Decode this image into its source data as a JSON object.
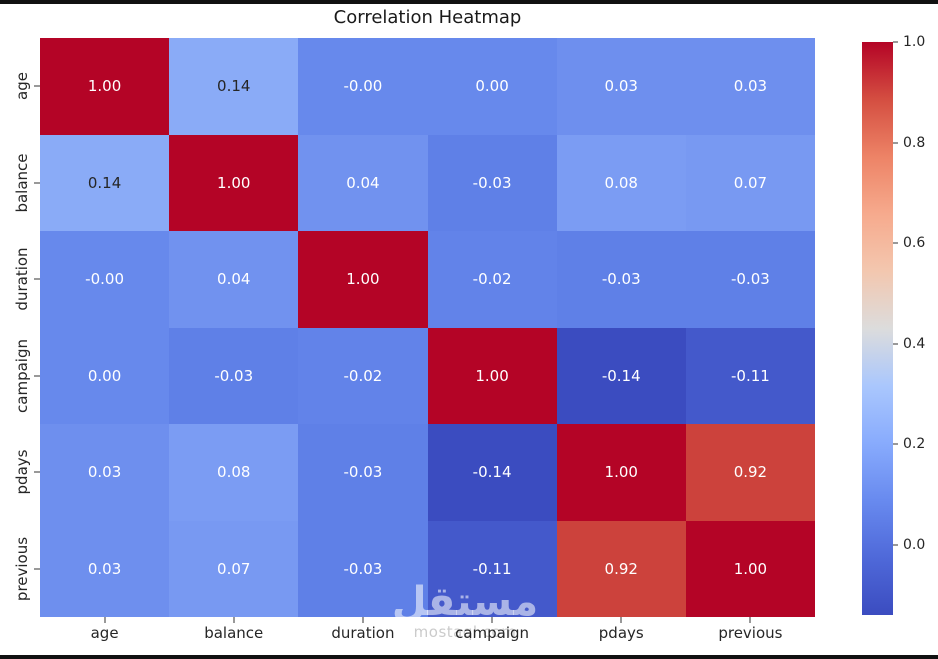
{
  "title": "Correlation Heatmap",
  "watermark": {
    "logo": "مستقل",
    "domain": "mostaql.com"
  },
  "colors": {
    "background": "#ffffff",
    "border_bars": "#111111",
    "title_text": "#1a1a1a",
    "tick_text": "#262626",
    "tick_mark": "#333333",
    "annot_light": "#ffffff",
    "annot_dark": "#262626",
    "watermark_logo": "rgba(255,255,255,0.55)",
    "watermark_domain": "rgba(190,190,190,0.8)"
  },
  "chart_data": {
    "type": "heatmap",
    "title": "Correlation Heatmap",
    "colormap": "coolwarm",
    "vmin": -0.14,
    "vmax": 1.0,
    "grid": false,
    "legend_position": "right-colorbar",
    "categories": [
      "age",
      "balance",
      "duration",
      "campaign",
      "pdays",
      "previous"
    ],
    "matrix": [
      [
        1.0,
        0.14,
        -0.0,
        0.0,
        0.03,
        0.03
      ],
      [
        0.14,
        1.0,
        0.04,
        -0.03,
        0.08,
        0.07
      ],
      [
        -0.0,
        0.04,
        1.0,
        -0.02,
        -0.03,
        -0.03
      ],
      [
        0.0,
        -0.03,
        -0.02,
        1.0,
        -0.14,
        -0.11
      ],
      [
        0.03,
        0.08,
        -0.03,
        -0.14,
        1.0,
        0.92
      ],
      [
        0.03,
        0.07,
        -0.03,
        -0.11,
        0.92,
        1.0
      ]
    ],
    "labels": [
      [
        "1.00",
        "0.14",
        "-0.00",
        "0.00",
        "0.03",
        "0.03"
      ],
      [
        "0.14",
        "1.00",
        "0.04",
        "-0.03",
        "0.08",
        "0.07"
      ],
      [
        "-0.00",
        "0.04",
        "1.00",
        "-0.02",
        "-0.03",
        "-0.03"
      ],
      [
        "0.00",
        "-0.03",
        "-0.02",
        "1.00",
        "-0.14",
        "-0.11"
      ],
      [
        "0.03",
        "0.08",
        "-0.03",
        "-0.14",
        "1.00",
        "0.92"
      ],
      [
        "0.03",
        "0.07",
        "-0.03",
        "-0.11",
        "0.92",
        "1.00"
      ]
    ],
    "cell_colors": {
      "1.00": "#b40426",
      "0.92": "#cc423c",
      "0.14": "#8aabf7",
      "0.08": "#7b9cf3",
      "0.07": "#7899f2",
      "0.04": "#7192ef",
      "0.03": "#6e8fee",
      "0.00": "#6789ec",
      "-0.00": "#6789ec",
      "-0.02": "#6283e9",
      "-0.03": "#5f80e7",
      "-0.11": "#4459cb",
      "-0.14": "#3b4cc0"
    },
    "dark_text_labels": [
      "0.14"
    ]
  },
  "colorbar": {
    "ticks": [
      "1.0",
      "0.8",
      "0.6",
      "0.4",
      "0.2",
      "0.0"
    ],
    "tick_values": [
      1.0,
      0.8,
      0.6,
      0.4,
      0.2,
      0.0
    ],
    "gradient_stops": [
      "#b40426",
      "#d44e41",
      "#ed8366",
      "#f6aa8d",
      "#f3c7af",
      "#dcdcdc",
      "#aac7fd",
      "#88abfd",
      "#688aef",
      "#4f69d9",
      "#3b4cc0"
    ]
  }
}
